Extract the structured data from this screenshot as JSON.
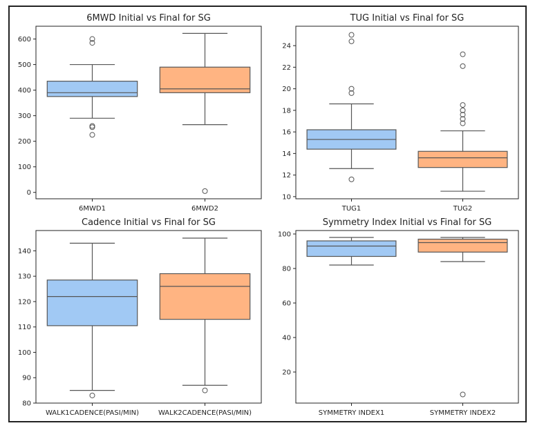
{
  "colors": {
    "box1": "#a1c9f4",
    "box2": "#ffb482",
    "stroke": "#555555"
  },
  "chart_data": [
    {
      "type": "box",
      "title": "6MWD Initial vs Final for SG",
      "categories": [
        "6MWD1",
        "6MWD2"
      ],
      "ylim": [
        -25,
        650
      ],
      "yticks": [
        0,
        100,
        200,
        300,
        400,
        500,
        600
      ],
      "boxes": [
        {
          "whisker_low": 290,
          "q1": 375,
          "median": 390,
          "q3": 435,
          "whisker_high": 500,
          "outliers": [
            600,
            585,
            260,
            255,
            225
          ]
        },
        {
          "whisker_low": 265,
          "q1": 390,
          "median": 405,
          "q3": 490,
          "whisker_high": 622,
          "outliers": [
            5
          ]
        }
      ]
    },
    {
      "type": "box",
      "title": "TUG Initial vs Final for SG",
      "categories": [
        "TUG1",
        "TUG2"
      ],
      "ylim": [
        9.8,
        25.8
      ],
      "yticks": [
        10,
        12,
        14,
        16,
        18,
        20,
        22,
        24
      ],
      "boxes": [
        {
          "whisker_low": 12.6,
          "q1": 14.4,
          "median": 15.3,
          "q3": 16.2,
          "whisker_high": 18.6,
          "outliers": [
            25.0,
            24.4,
            20.0,
            19.6,
            11.6
          ]
        },
        {
          "whisker_low": 10.5,
          "q1": 12.7,
          "median": 13.6,
          "q3": 14.2,
          "whisker_high": 16.1,
          "outliers": [
            23.2,
            22.1,
            18.5,
            18.0,
            17.6,
            17.2,
            16.8
          ]
        }
      ]
    },
    {
      "type": "box",
      "title": "Cadence Initial vs Final for SG",
      "categories": [
        "WALK1CADENCE(PASI/MIN)",
        "WALK2CADENCE(PASI/MIN)"
      ],
      "ylim": [
        80,
        148
      ],
      "yticks": [
        80,
        90,
        100,
        110,
        120,
        130,
        140
      ],
      "boxes": [
        {
          "whisker_low": 85,
          "q1": 110.5,
          "median": 122,
          "q3": 128.5,
          "whisker_high": 143,
          "outliers": [
            83
          ]
        },
        {
          "whisker_low": 87,
          "q1": 113,
          "median": 126,
          "q3": 131,
          "whisker_high": 145,
          "outliers": [
            85
          ]
        }
      ]
    },
    {
      "type": "box",
      "title": "Symmetry Index Initial vs Final for SG",
      "categories": [
        "SYMMETRY INDEX1",
        "SYMMETRY INDEX2"
      ],
      "ylim": [
        2,
        102
      ],
      "yticks": [
        20,
        40,
        60,
        80,
        100
      ],
      "boxes": [
        {
          "whisker_low": 82,
          "q1": 87,
          "median": 93,
          "q3": 96,
          "whisker_high": 98,
          "outliers": []
        },
        {
          "whisker_low": 84,
          "q1": 89.5,
          "median": 95,
          "q3": 97,
          "whisker_high": 98,
          "outliers": [
            7
          ]
        }
      ]
    }
  ]
}
